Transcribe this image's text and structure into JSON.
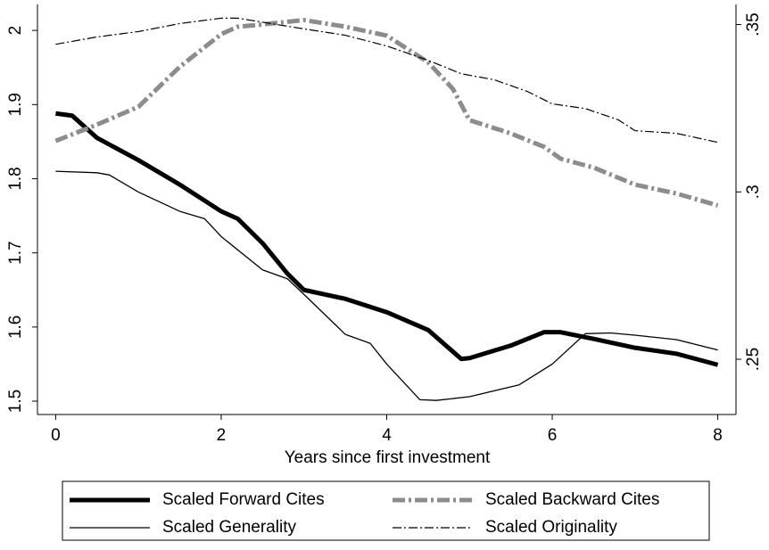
{
  "chart_data": {
    "type": "line",
    "x_label": "Years since first investment",
    "xlim": [
      -0.22,
      8.22
    ],
    "xticks": [
      0,
      2,
      4,
      6,
      8
    ],
    "ylim": [
      1.482,
      2.035
    ],
    "yticks": [
      1.5,
      1.6,
      1.7,
      1.8,
      1.9,
      2
    ],
    "y2lim": [
      0.2335,
      0.356
    ],
    "y2ticks": [
      {
        "value": 0.25,
        "label": ".25"
      },
      {
        "value": 0.3,
        "label": ".3"
      },
      {
        "value": 0.35,
        "label": ".35"
      }
    ],
    "series": [
      {
        "name": "Scaled Forward Cites",
        "color": "#000000",
        "x": [
          0,
          0.2,
          0.5,
          1,
          1.5,
          2,
          2.2,
          2.5,
          2.8,
          3,
          3.5,
          4,
          4.5,
          4.9,
          5,
          5.5,
          5.9,
          6.1,
          6.5,
          7,
          7.5,
          8
        ],
        "values": [
          1.888,
          1.885,
          1.855,
          1.825,
          1.792,
          1.756,
          1.746,
          1.713,
          1.672,
          1.65,
          1.638,
          1.62,
          1.596,
          1.557,
          1.558,
          1.575,
          1.593,
          1.593,
          1.584,
          1.572,
          1.564,
          1.549
        ]
      },
      {
        "name": "Scaled Backward Cites",
        "color": "#8c8c8c",
        "x": [
          0,
          0.5,
          1,
          1.5,
          2,
          2.2,
          2.5,
          3,
          3.5,
          4,
          4.5,
          4.8,
          5,
          5.5,
          5.9,
          6.1,
          6.5,
          7,
          7.5,
          8
        ],
        "values": [
          1.851,
          1.873,
          1.897,
          1.951,
          1.995,
          2.005,
          2.008,
          2.014,
          2.005,
          1.993,
          1.957,
          1.921,
          1.879,
          1.861,
          1.843,
          1.827,
          1.815,
          1.792,
          1.78,
          1.764
        ]
      },
      {
        "name": "Scaled Generality",
        "color": "#000000",
        "x": [
          0,
          0.5,
          0.65,
          1,
          1.5,
          1.8,
          2,
          2.5,
          2.8,
          3,
          3.5,
          3.8,
          4,
          4.4,
          4.6,
          5,
          5.6,
          6,
          6.4,
          6.7,
          7,
          7.5,
          8
        ],
        "values": [
          1.81,
          1.808,
          1.805,
          1.782,
          1.756,
          1.746,
          1.722,
          1.677,
          1.665,
          1.644,
          1.59,
          1.578,
          1.55,
          1.502,
          1.501,
          1.506,
          1.522,
          1.55,
          1.591,
          1.592,
          1.589,
          1.583,
          1.569
        ]
      },
      {
        "name": "Scaled Originality",
        "color": "#000000",
        "axis": "y2",
        "x": [
          0,
          0.5,
          1,
          1.5,
          2,
          2.2,
          3,
          3.5,
          4,
          4.5,
          4.9,
          5.3,
          5.7,
          6,
          6.4,
          6.8,
          7,
          7.5,
          8
        ],
        "values": [
          0.3441,
          0.3463,
          0.3479,
          0.3503,
          0.3519,
          0.3519,
          0.3487,
          0.3468,
          0.3436,
          0.3393,
          0.3353,
          0.3335,
          0.33,
          0.3263,
          0.3249,
          0.3215,
          0.3183,
          0.3175,
          0.3148
        ]
      }
    ]
  }
}
